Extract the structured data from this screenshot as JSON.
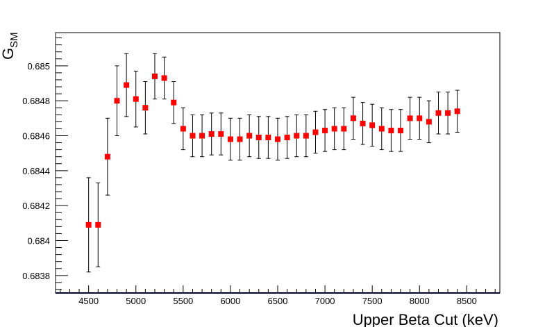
{
  "chart_data": {
    "type": "scatter",
    "xlabel": "Upper Beta Cut (keV)",
    "ylabel": "G",
    "ylabel_sub": "SM",
    "xlim": [
      4150,
      8850
    ],
    "ylim": [
      0.6837,
      0.68519
    ],
    "x_ticks": [
      4500,
      5000,
      5500,
      6000,
      6500,
      7000,
      7500,
      8000,
      8500
    ],
    "x_tick_labels": [
      "4500",
      "5000",
      "5500",
      "6000",
      "6500",
      "7000",
      "7500",
      "8000",
      "8500"
    ],
    "y_ticks": [
      0.6838,
      0.684,
      0.6842,
      0.6844,
      0.6846,
      0.6848,
      0.685
    ],
    "y_tick_labels": [
      "0.6838",
      "0.684",
      "0.6842",
      "0.6844",
      "0.6846",
      "0.6848",
      "0.685"
    ],
    "grid": false,
    "marker_color": "#ff0000",
    "points": [
      {
        "x": 4500,
        "y": 0.68409,
        "err": 0.00027
      },
      {
        "x": 4600,
        "y": 0.68409,
        "err": 0.00024
      },
      {
        "x": 4700,
        "y": 0.68448,
        "err": 0.00022
      },
      {
        "x": 4800,
        "y": 0.6848,
        "err": 0.0002
      },
      {
        "x": 4900,
        "y": 0.68489,
        "err": 0.00018
      },
      {
        "x": 5000,
        "y": 0.68481,
        "err": 0.00016
      },
      {
        "x": 5100,
        "y": 0.68476,
        "err": 0.00015
      },
      {
        "x": 5200,
        "y": 0.68494,
        "err": 0.00013
      },
      {
        "x": 5300,
        "y": 0.68493,
        "err": 0.00012
      },
      {
        "x": 5400,
        "y": 0.68479,
        "err": 0.00012
      },
      {
        "x": 5500,
        "y": 0.68464,
        "err": 0.00012
      },
      {
        "x": 5600,
        "y": 0.6846,
        "err": 0.00012
      },
      {
        "x": 5700,
        "y": 0.6846,
        "err": 0.00012
      },
      {
        "x": 5800,
        "y": 0.68461,
        "err": 0.00012
      },
      {
        "x": 5900,
        "y": 0.68461,
        "err": 0.00012
      },
      {
        "x": 6000,
        "y": 0.68458,
        "err": 0.00012
      },
      {
        "x": 6100,
        "y": 0.68458,
        "err": 0.00012
      },
      {
        "x": 6200,
        "y": 0.6846,
        "err": 0.00012
      },
      {
        "x": 6300,
        "y": 0.68459,
        "err": 0.00012
      },
      {
        "x": 6400,
        "y": 0.68459,
        "err": 0.00012
      },
      {
        "x": 6500,
        "y": 0.68458,
        "err": 0.00012
      },
      {
        "x": 6600,
        "y": 0.68459,
        "err": 0.00012
      },
      {
        "x": 6700,
        "y": 0.6846,
        "err": 0.00012
      },
      {
        "x": 6800,
        "y": 0.6846,
        "err": 0.00012
      },
      {
        "x": 6900,
        "y": 0.68462,
        "err": 0.00012
      },
      {
        "x": 7000,
        "y": 0.68463,
        "err": 0.00012
      },
      {
        "x": 7100,
        "y": 0.68464,
        "err": 0.00012
      },
      {
        "x": 7200,
        "y": 0.68464,
        "err": 0.00012
      },
      {
        "x": 7300,
        "y": 0.6847,
        "err": 0.00012
      },
      {
        "x": 7400,
        "y": 0.68467,
        "err": 0.00012
      },
      {
        "x": 7500,
        "y": 0.68466,
        "err": 0.00012
      },
      {
        "x": 7600,
        "y": 0.68464,
        "err": 0.00012
      },
      {
        "x": 7700,
        "y": 0.68463,
        "err": 0.00012
      },
      {
        "x": 7800,
        "y": 0.68463,
        "err": 0.00012
      },
      {
        "x": 7900,
        "y": 0.6847,
        "err": 0.00012
      },
      {
        "x": 8000,
        "y": 0.6847,
        "err": 0.00012
      },
      {
        "x": 8100,
        "y": 0.68468,
        "err": 0.00012
      },
      {
        "x": 8200,
        "y": 0.68473,
        "err": 0.00012
      },
      {
        "x": 8300,
        "y": 0.68473,
        "err": 0.00012
      },
      {
        "x": 8400,
        "y": 0.68474,
        "err": 0.00012
      }
    ]
  }
}
